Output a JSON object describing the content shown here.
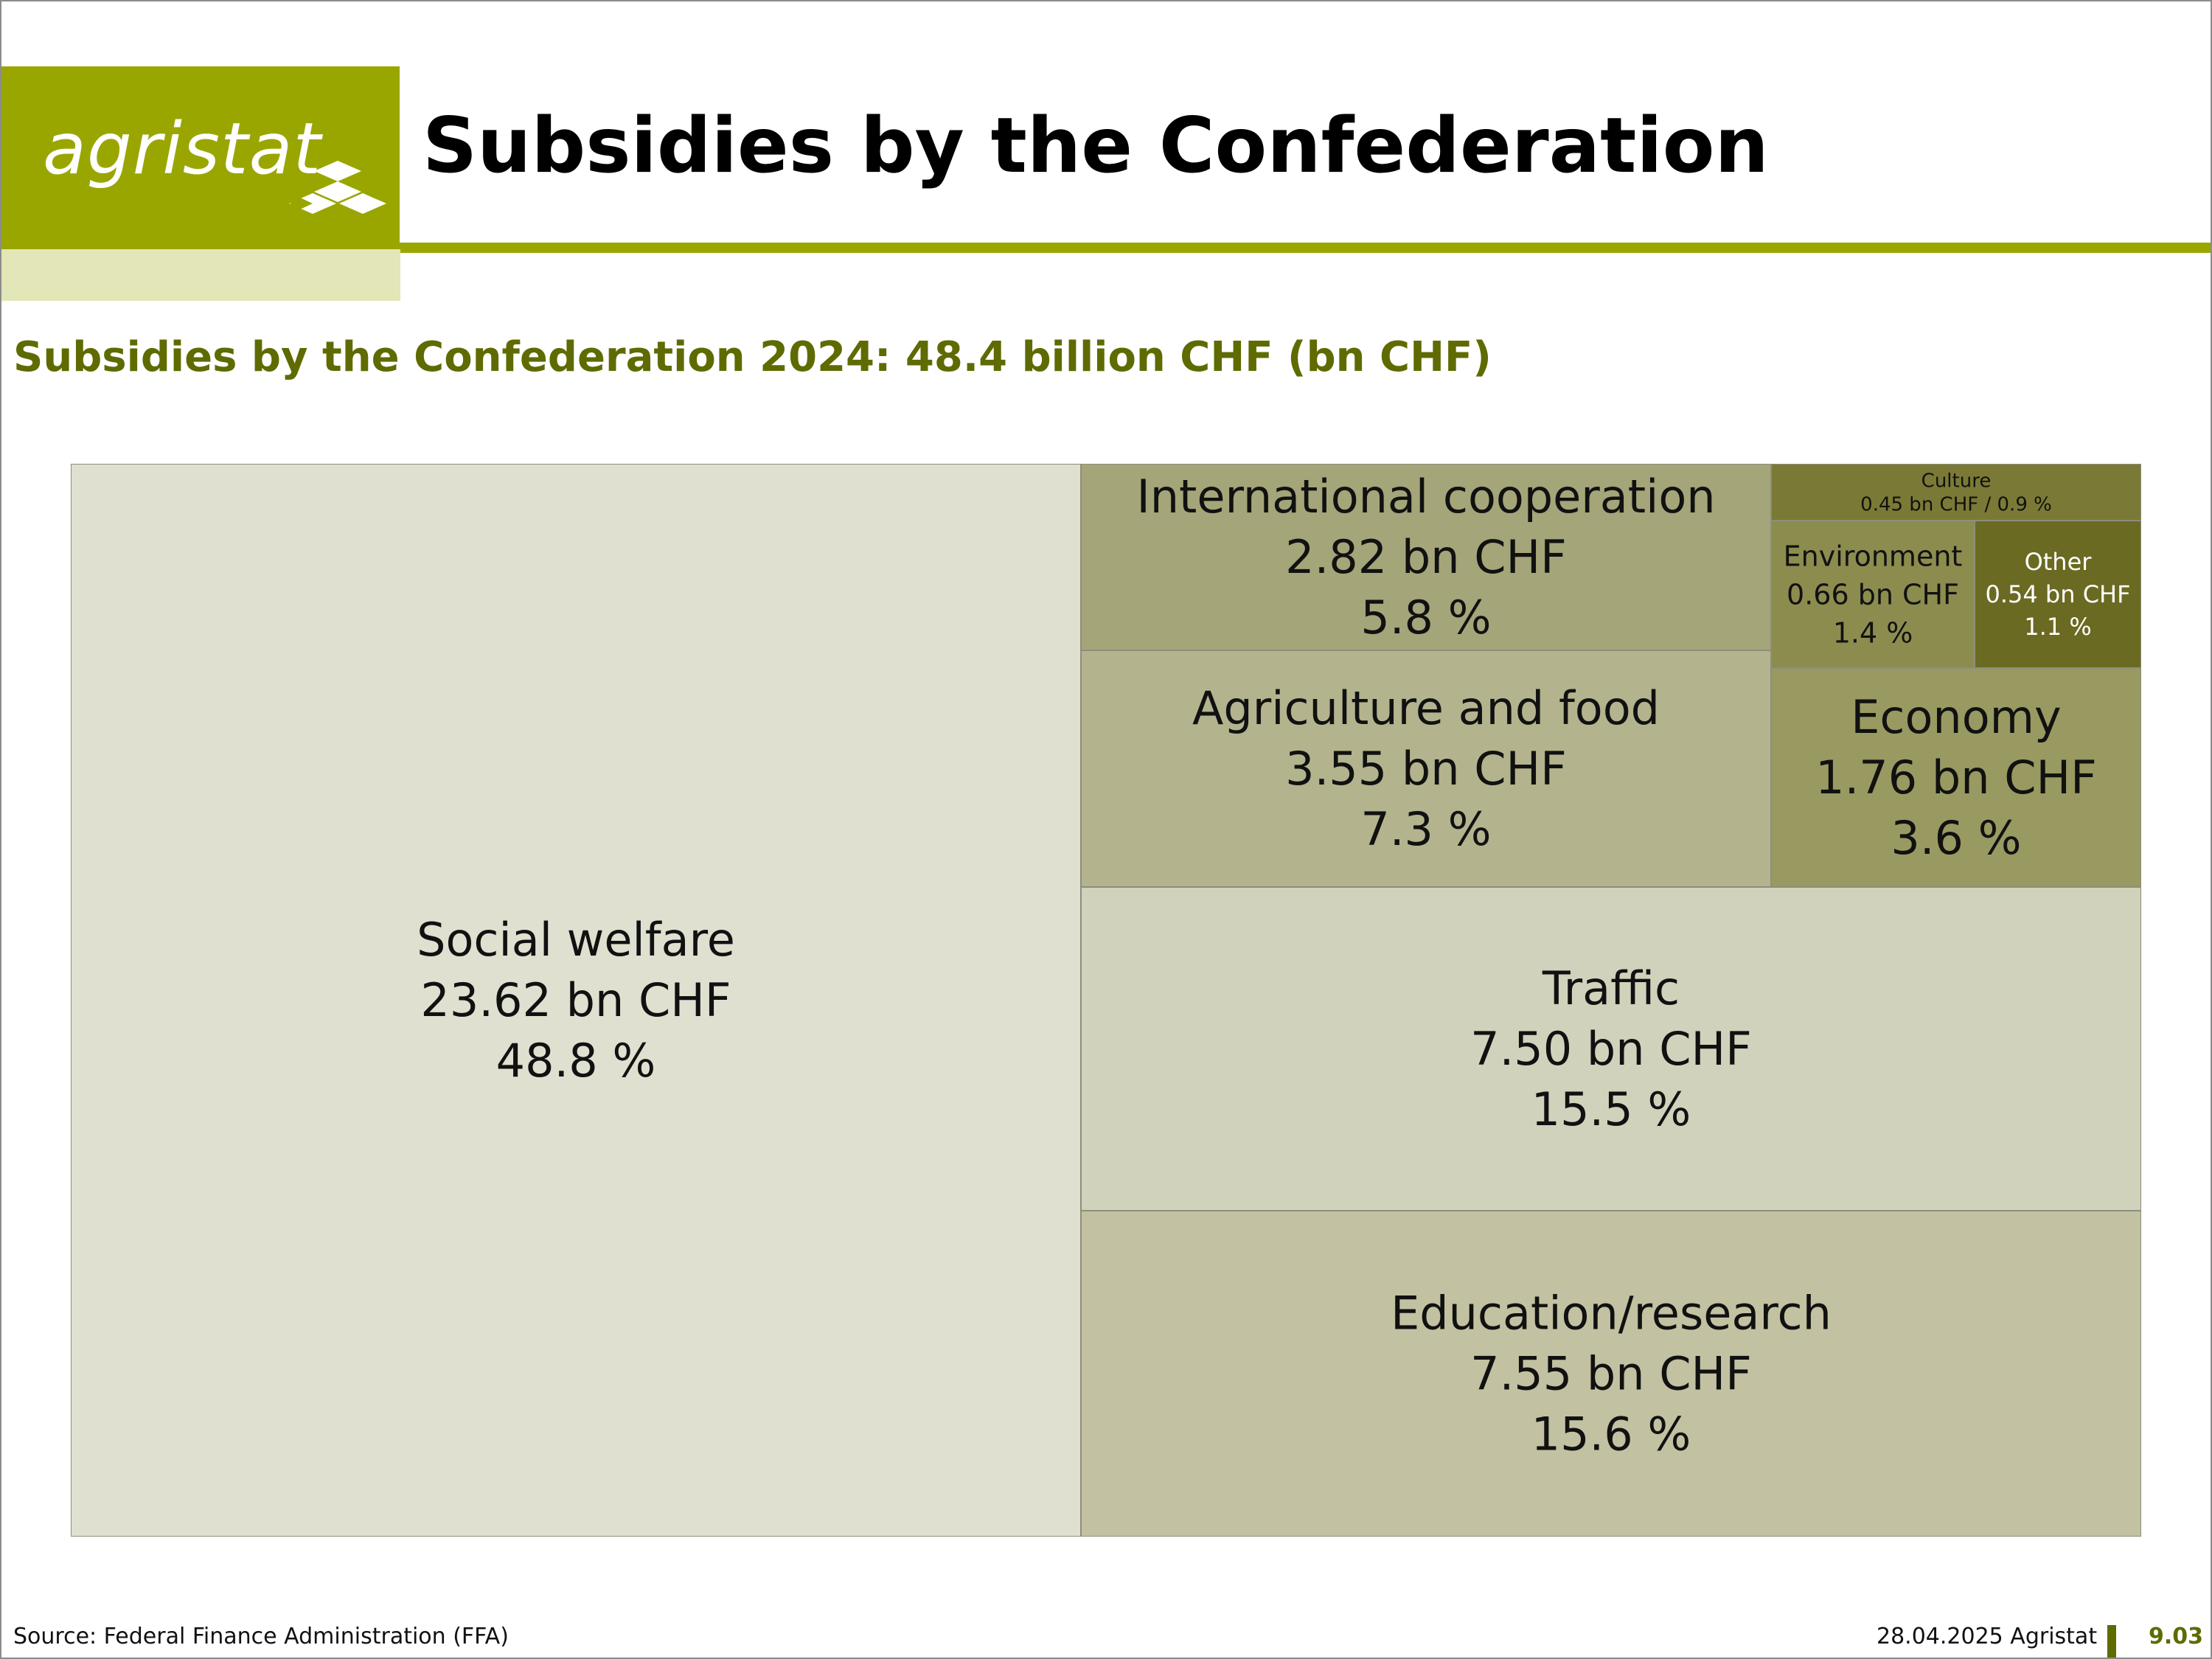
{
  "header": {
    "logo_text": "agristat",
    "title": "Subsidies by the Confederation"
  },
  "chart_title": "Subsidies by the Confederation 2024: 48.4 billion CHF (bn CHF)",
  "colors": {
    "brand": "#9aa600",
    "brand_light": "#e3e6b6",
    "subtitle": "#5f6b00"
  },
  "chart_data": {
    "type": "treemap",
    "title": "Subsidies by the Confederation 2024: 48.4 billion CHF (bn CHF)",
    "total_bn_chf": 48.4,
    "unit": "bn CHF",
    "items": [
      {
        "label": "Social welfare",
        "value": 23.62,
        "value_text": "23.62 bn CHF",
        "share_text": "48.8 %",
        "color": "#dfe0d0"
      },
      {
        "label": "Education/research",
        "value": 7.55,
        "value_text": "7.55 bn CHF",
        "share_text": "15.6 %",
        "color": "#c2c2a2"
      },
      {
        "label": "Traffic",
        "value": 7.5,
        "value_text": "7.50 bn CHF",
        "share_text": "15.5 %",
        "color": "#d1d2bc"
      },
      {
        "label": "Agriculture and food",
        "value": 3.55,
        "value_text": "3.55 bn CHF",
        "share_text": "7.3 %",
        "color": "#b3b48e"
      },
      {
        "label": "International cooperation",
        "value": 2.82,
        "value_text": "2.82 bn CHF",
        "share_text": "5.8 %",
        "color": "#a4a579"
      },
      {
        "label": "Economy",
        "value": 1.76,
        "value_text": "1.76 bn CHF",
        "share_text": "3.6 %",
        "color": "#999a61"
      },
      {
        "label": "Environment",
        "value": 0.66,
        "value_text": "0.66 bn CHF",
        "share_text": "1.4 %",
        "color": "#8c8c4f"
      },
      {
        "label": "Other",
        "value": 0.54,
        "value_text": "0.54 bn CHF",
        "share_text": "1.1 %",
        "color": "#6a6a22"
      },
      {
        "label": "Culture",
        "value": 0.45,
        "value_text": "0.45 bn CHF",
        "share_text": "0.9 %",
        "color": "#7a7a36"
      }
    ]
  },
  "footer": {
    "source": "Source: Federal Finance Administration (FFA)",
    "date_org": "28.04.2025 Agristat",
    "page_number": "9.03"
  }
}
